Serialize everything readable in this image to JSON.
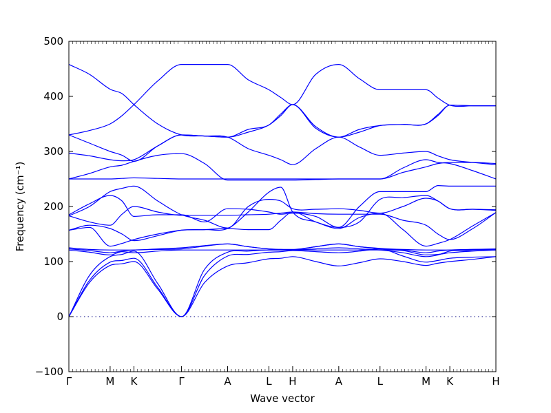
{
  "chart_data": {
    "type": "line",
    "title": "",
    "xlabel": "Wave vector",
    "ylabel": "Frequency (cm⁻¹)",
    "ylim": [
      -100,
      500
    ],
    "yticks": [
      -100,
      0,
      100,
      200,
      300,
      400,
      500
    ],
    "grid": false,
    "legend": "none",
    "line_color": "#0000ff",
    "zero_line": 0,
    "path_points": [
      {
        "label": "Γ",
        "pos": 0.0
      },
      {
        "label": "M",
        "pos": 0.565
      },
      {
        "label": "K",
        "pos": 0.891
      },
      {
        "label": "Γ",
        "pos": 1.543
      },
      {
        "label": "A",
        "pos": 2.174
      },
      {
        "label": "L",
        "pos": 2.739
      },
      {
        "label": "H",
        "pos": 3.065
      },
      {
        "label": "A",
        "pos": 3.696
      },
      {
        "label": "L",
        "pos": 4.261
      },
      {
        "label": "M",
        "pos": 4.891
      },
      {
        "label": "K",
        "pos": 5.217
      },
      {
        "label": "H",
        "pos": 5.848
      }
    ],
    "series": [
      {
        "x": [
          0,
          0.2826,
          0.565,
          0.728,
          0.891,
          1.217,
          1.543,
          1.859,
          2.174,
          2.457,
          2.739,
          2.902,
          3.065,
          3.381,
          3.696,
          3.979,
          4.261,
          4.576,
          4.891,
          5.054,
          5.217,
          5.533,
          5.848
        ],
        "values": [
          0,
          62,
          93,
          96,
          100,
          50,
          0,
          62,
          92,
          98,
          105,
          106,
          109,
          100,
          92,
          98,
          105,
          100,
          93,
          97,
          100,
          104,
          109
        ]
      },
      {
        "x": [
          0,
          0.2826,
          0.565,
          0.728,
          0.891,
          1.217,
          1.543,
          1.859,
          2.174,
          2.457,
          2.739,
          2.902,
          3.065,
          3.381,
          3.696,
          3.979,
          4.261,
          4.576,
          4.891,
          5.054,
          5.217,
          5.533,
          5.848
        ],
        "values": [
          0,
          66,
          99,
          102,
          106,
          53,
          0,
          75,
          110,
          113,
          117,
          118,
          120,
          118,
          116,
          119,
          123,
          110,
          99,
          102,
          106,
          108,
          109
        ]
      },
      {
        "x": [
          0,
          0.2826,
          0.565,
          0.728,
          0.891,
          1.217,
          1.543,
          1.859,
          2.174,
          2.457,
          2.739,
          2.902,
          3.065,
          3.381,
          3.696,
          3.979,
          4.261,
          4.576,
          4.891,
          5.054,
          5.217,
          5.533,
          5.848
        ],
        "values": [
          0,
          75,
          109,
          113,
          119,
          60,
          0,
          86,
          117,
          119,
          121,
          121,
          121,
          123,
          125,
          123,
          121,
          116,
          109,
          112,
          119,
          120,
          121
        ]
      },
      {
        "x": [
          0,
          0.2826,
          0.565,
          0.728,
          0.891,
          1.217,
          1.543,
          1.859,
          2.174,
          2.457,
          2.739,
          2.902,
          3.065,
          3.381,
          3.696,
          3.979,
          4.261,
          4.576,
          4.891,
          5.054,
          5.217,
          5.533,
          5.848
        ],
        "values": [
          121,
          117,
          112,
          118,
          116,
          119,
          121,
          121,
          121,
          121,
          121,
          121,
          121,
          121,
          121,
          121,
          121,
          120,
          112,
          113,
          116,
          119,
          121
        ]
      },
      {
        "x": [
          0,
          0.2826,
          0.565,
          0.728,
          0.891,
          1.217,
          1.543,
          1.859,
          2.174,
          2.457,
          2.739,
          2.902,
          3.065,
          3.381,
          3.696,
          3.979,
          4.261,
          4.576,
          4.891,
          5.054,
          5.217,
          5.533,
          5.848
        ],
        "values": [
          123,
          120,
          116,
          119,
          121,
          122,
          123,
          128,
          132,
          127,
          123,
          122,
          121,
          127,
          132,
          127,
          123,
          121,
          116,
          119,
          121,
          122,
          122
        ]
      },
      {
        "x": [
          0,
          0.2826,
          0.565,
          0.728,
          0.891,
          1.217,
          1.543,
          1.859,
          2.174,
          2.457,
          2.739,
          2.902,
          3.065,
          3.381,
          3.696,
          3.979,
          4.261,
          4.576,
          4.891,
          5.054,
          5.217,
          5.533,
          5.848
        ],
        "values": [
          125,
          122,
          121,
          121,
          121,
          123,
          125,
          129,
          132,
          127,
          123,
          122,
          122,
          127,
          132,
          127,
          124,
          122,
          121,
          121,
          121,
          122,
          123
        ]
      },
      {
        "x": [
          0,
          0.2826,
          0.565,
          0.728,
          0.891,
          1.217,
          1.543,
          1.859,
          2.174,
          2.457,
          2.739,
          2.902,
          3.065,
          3.381,
          3.696,
          3.979,
          4.261,
          4.576,
          4.891,
          5.054,
          5.217,
          5.533,
          5.848
        ],
        "values": [
          157,
          162,
          128,
          133,
          140,
          150,
          157,
          158,
          160,
          158,
          158,
          175,
          190,
          172,
          160,
          180,
          188,
          158,
          128,
          133,
          140,
          165,
          189
        ]
      },
      {
        "x": [
          0,
          0.2826,
          0.565,
          0.728,
          0.891,
          1.217,
          1.543,
          1.859,
          2.174,
          2.457,
          2.739,
          2.902,
          3.065,
          3.381,
          3.696,
          3.979,
          4.261,
          4.576,
          4.891,
          5.054,
          5.217,
          5.533,
          5.848
        ],
        "values": [
          157,
          166,
          160,
          150,
          138,
          147,
          157,
          158,
          160,
          190,
          226,
          235,
          190,
          172,
          162,
          200,
          227,
          227,
          227,
          238,
          237,
          237,
          237
        ]
      },
      {
        "x": [
          0,
          0.2826,
          0.565,
          0.728,
          0.891,
          1.217,
          1.543,
          1.859,
          2.174,
          2.457,
          2.739,
          2.902,
          3.065,
          3.381,
          3.696,
          3.979,
          4.261,
          4.576,
          4.891,
          5.054,
          5.217,
          5.533,
          5.848
        ],
        "values": [
          183,
          172,
          166,
          186,
          200,
          190,
          184,
          184,
          184,
          185,
          186,
          188,
          190,
          187,
          186,
          186,
          186,
          175,
          166,
          150,
          140,
          160,
          189
        ]
      },
      {
        "x": [
          0,
          0.2826,
          0.565,
          0.728,
          0.891,
          1.217,
          1.543,
          1.859,
          2.174,
          2.457,
          2.739,
          2.902,
          3.065,
          3.381,
          3.696,
          3.979,
          4.261,
          4.576,
          4.891,
          5.054,
          5.217,
          5.533,
          5.848
        ],
        "values": [
          183,
          200,
          227,
          233,
          237,
          210,
          185,
          175,
          161,
          200,
          213,
          210,
          196,
          195,
          196,
          193,
          188,
          200,
          215,
          210,
          196,
          195,
          193
        ]
      },
      {
        "x": [
          0,
          0.2826,
          0.565,
          0.728,
          0.891,
          1.217,
          1.543,
          1.859,
          2.174,
          2.457,
          2.739,
          2.902,
          3.065,
          3.381,
          3.696,
          3.979,
          4.261,
          4.576,
          4.891,
          5.054,
          5.217,
          5.533,
          5.848
        ],
        "values": [
          185,
          205,
          220,
          210,
          182,
          185,
          185,
          172,
          196,
          195,
          190,
          186,
          188,
          182,
          162,
          172,
          213,
          216,
          220,
          210,
          196,
          195,
          194
        ]
      },
      {
        "x": [
          0,
          0.2826,
          0.565,
          0.728,
          0.891,
          1.217,
          1.543,
          1.859,
          2.174,
          2.457,
          2.739,
          2.902,
          3.065,
          3.381,
          3.696,
          3.979,
          4.261,
          4.576,
          4.891,
          5.054,
          5.217,
          5.533,
          5.848
        ],
        "values": [
          250,
          260,
          272,
          275,
          282,
          293,
          296,
          278,
          248,
          248,
          248,
          248,
          248,
          249,
          250,
          250,
          250,
          262,
          272,
          278,
          280,
          280,
          278
        ]
      },
      {
        "x": [
          0,
          0.2826,
          0.565,
          0.728,
          0.891,
          1.217,
          1.543,
          1.859,
          2.174,
          2.457,
          2.739,
          2.902,
          3.065,
          3.381,
          3.696,
          3.979,
          4.261,
          4.576,
          4.891,
          5.054,
          5.217,
          5.533,
          5.848
        ],
        "values": [
          250,
          250,
          250,
          251,
          252,
          251,
          250,
          250,
          250,
          250,
          250,
          250,
          250,
          250,
          250,
          250,
          250,
          270,
          285,
          280,
          278,
          265,
          250
        ]
      },
      {
        "x": [
          0,
          0.2826,
          0.565,
          0.728,
          0.891,
          1.217,
          1.543,
          1.859,
          2.174,
          2.457,
          2.739,
          2.902,
          3.065,
          3.381,
          3.696,
          3.979,
          4.261,
          4.576,
          4.891,
          5.054,
          5.217,
          5.533,
          5.848
        ],
        "values": [
          297,
          292,
          285,
          283,
          285,
          310,
          330,
          328,
          326,
          305,
          293,
          285,
          276,
          305,
          326,
          308,
          293,
          297,
          300,
          292,
          285,
          280,
          276
        ]
      },
      {
        "x": [
          0,
          0.2826,
          0.565,
          0.728,
          0.891,
          1.217,
          1.543,
          1.859,
          2.174,
          2.457,
          2.739,
          2.902,
          3.065,
          3.381,
          3.696,
          3.979,
          4.261,
          4.576,
          4.891,
          5.054,
          5.217,
          5.533,
          5.848
        ],
        "values": [
          330,
          315,
          300,
          293,
          282,
          310,
          330,
          328,
          326,
          335,
          348,
          365,
          385,
          345,
          326,
          335,
          347,
          349,
          350,
          365,
          384,
          383,
          383
        ]
      },
      {
        "x": [
          0,
          0.2826,
          0.565,
          0.728,
          0.891,
          1.217,
          1.543,
          1.859,
          2.174,
          2.457,
          2.739,
          2.902,
          3.065,
          3.381,
          3.696,
          3.979,
          4.261,
          4.576,
          4.891,
          5.054,
          5.217,
          5.533,
          5.848
        ],
        "values": [
          330,
          338,
          350,
          365,
          385,
          428,
          458,
          458,
          458,
          430,
          412,
          398,
          385,
          440,
          458,
          432,
          412,
          412,
          412,
          397,
          384,
          383,
          383
        ]
      },
      {
        "x": [
          0,
          0.2826,
          0.565,
          0.728,
          0.891,
          1.217,
          1.543,
          1.859,
          2.174,
          2.457,
          2.739,
          2.902,
          3.065,
          3.381,
          3.696,
          3.979,
          4.261,
          4.576,
          4.891,
          5.054,
          5.217,
          5.533,
          5.848
        ],
        "values": [
          458,
          440,
          413,
          405,
          385,
          350,
          330,
          328,
          326,
          340,
          348,
          368,
          385,
          342,
          326,
          340,
          347,
          349,
          350,
          367,
          384,
          383,
          383
        ]
      }
    ]
  }
}
